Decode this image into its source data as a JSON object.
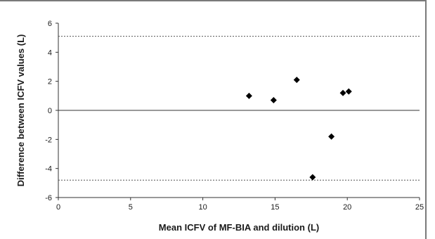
{
  "chart_data": {
    "type": "scatter",
    "xlabel": "Mean ICFV of MF-BIA and dilution (L)",
    "ylabel": "Difference between ICFV values (L)",
    "xlim": [
      0,
      25
    ],
    "ylim": [
      -6,
      6
    ],
    "x_ticks": [
      0,
      5,
      10,
      15,
      20,
      25
    ],
    "y_ticks": [
      -6,
      -4,
      -2,
      0,
      2,
      4,
      6
    ],
    "x_tick_labels": [
      "0",
      "5",
      "10",
      "15",
      "20",
      "25"
    ],
    "y_tick_labels": [
      "-6",
      "-4",
      "-2",
      "0",
      "2",
      "4",
      "6"
    ],
    "grid": false,
    "marker": "diamond",
    "marker_color": "#000000",
    "points": [
      {
        "x": 13.2,
        "y": 1.0
      },
      {
        "x": 14.9,
        "y": 0.7
      },
      {
        "x": 16.5,
        "y": 2.1
      },
      {
        "x": 17.6,
        "y": -4.6
      },
      {
        "x": 18.9,
        "y": -1.8
      },
      {
        "x": 19.7,
        "y": 1.2
      },
      {
        "x": 20.1,
        "y": 1.3
      }
    ],
    "reference_lines": [
      {
        "y": 5.1,
        "style": "dotted"
      },
      {
        "y": 0,
        "style": "solid"
      },
      {
        "y": -4.8,
        "style": "dotted"
      }
    ]
  }
}
